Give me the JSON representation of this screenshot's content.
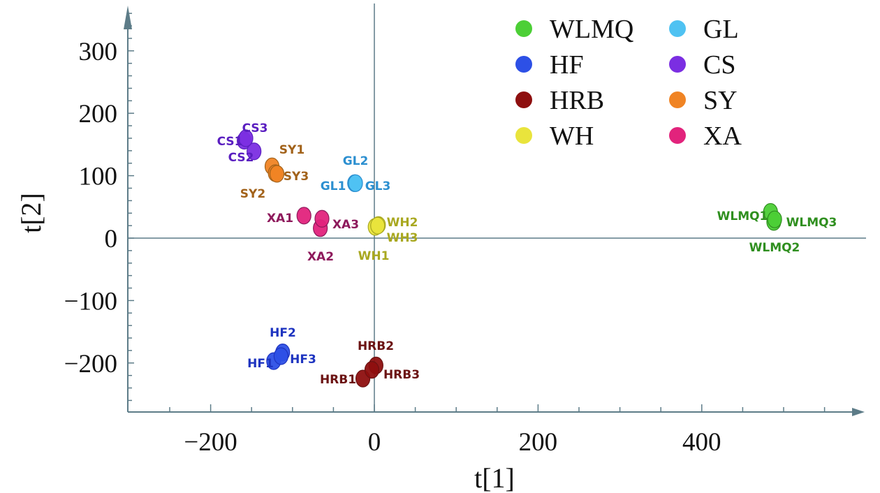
{
  "chart_data": {
    "type": "scatter",
    "title": "",
    "xlabel": "t[1]",
    "ylabel": "t[2]",
    "xlim": [
      -300,
      600
    ],
    "ylim": [
      -280,
      370
    ],
    "x_ticks": [
      -200,
      0,
      200,
      400
    ],
    "x_tick_labels": [
      "−200",
      "0",
      "200",
      "400"
    ],
    "y_ticks": [
      -200,
      -100,
      0,
      100,
      200,
      300
    ],
    "y_tick_labels": [
      "−200",
      "−100",
      "0",
      "100",
      "200",
      "300"
    ],
    "grid": false,
    "legend_position": "top-right",
    "series": [
      {
        "name": "WLMQ",
        "color": "#4ccf36",
        "label_color": "#2f8f1f",
        "points": [
          {
            "label": "WLMQ1",
            "x": 484,
            "y": 42
          },
          {
            "label": "WLMQ2",
            "x": 488,
            "y": 26
          },
          {
            "label": "WLMQ3",
            "x": 489,
            "y": 30
          }
        ]
      },
      {
        "name": "HF",
        "color": "#2d50e6",
        "label_color": "#1e34c0",
        "points": [
          {
            "label": "HF1",
            "x": -123,
            "y": -197
          },
          {
            "label": "HF2",
            "x": -112,
            "y": -183
          },
          {
            "label": "HF3",
            "x": -114,
            "y": -189
          }
        ]
      },
      {
        "name": "HRB",
        "color": "#8e0f0f",
        "label_color": "#6b1212",
        "points": [
          {
            "label": "HRB1",
            "x": -14,
            "y": -225
          },
          {
            "label": "HRB2",
            "x": 2,
            "y": -204
          },
          {
            "label": "HRB3",
            "x": -3,
            "y": -211
          }
        ]
      },
      {
        "name": "WH",
        "color": "#e9e43c",
        "label_color": "#a9a820",
        "points": [
          {
            "label": "WH1",
            "x": 1,
            "y": 18
          },
          {
            "label": "WH2",
            "x": 5,
            "y": 21
          },
          {
            "label": "WH3",
            "x": 4,
            "y": 20
          }
        ]
      },
      {
        "name": "GL",
        "color": "#4fc2f2",
        "label_color": "#2c8fd0",
        "points": [
          {
            "label": "GL1",
            "x": -24,
            "y": 88
          },
          {
            "label": "GL2",
            "x": -24,
            "y": 88
          },
          {
            "label": "GL3",
            "x": -23,
            "y": 88
          }
        ]
      },
      {
        "name": "CS",
        "color": "#7b2ee2",
        "label_color": "#5a1ec0",
        "points": [
          {
            "label": "CS1",
            "x": -159,
            "y": 156
          },
          {
            "label": "CS2",
            "x": -147,
            "y": 139
          },
          {
            "label": "CS3",
            "x": -157,
            "y": 160
          }
        ]
      },
      {
        "name": "SY",
        "color": "#f08424",
        "label_color": "#a2621a",
        "points": [
          {
            "label": "SY1",
            "x": -125,
            "y": 115
          },
          {
            "label": "SY2",
            "x": -121,
            "y": 104
          },
          {
            "label": "SY3",
            "x": -119,
            "y": 103
          }
        ]
      },
      {
        "name": "XA",
        "color": "#e2237c",
        "label_color": "#8e1a5c",
        "points": [
          {
            "label": "XA1",
            "x": -86,
            "y": 36
          },
          {
            "label": "XA2",
            "x": -66,
            "y": 16
          },
          {
            "label": "XA3",
            "x": -64,
            "y": 31
          }
        ]
      }
    ]
  }
}
